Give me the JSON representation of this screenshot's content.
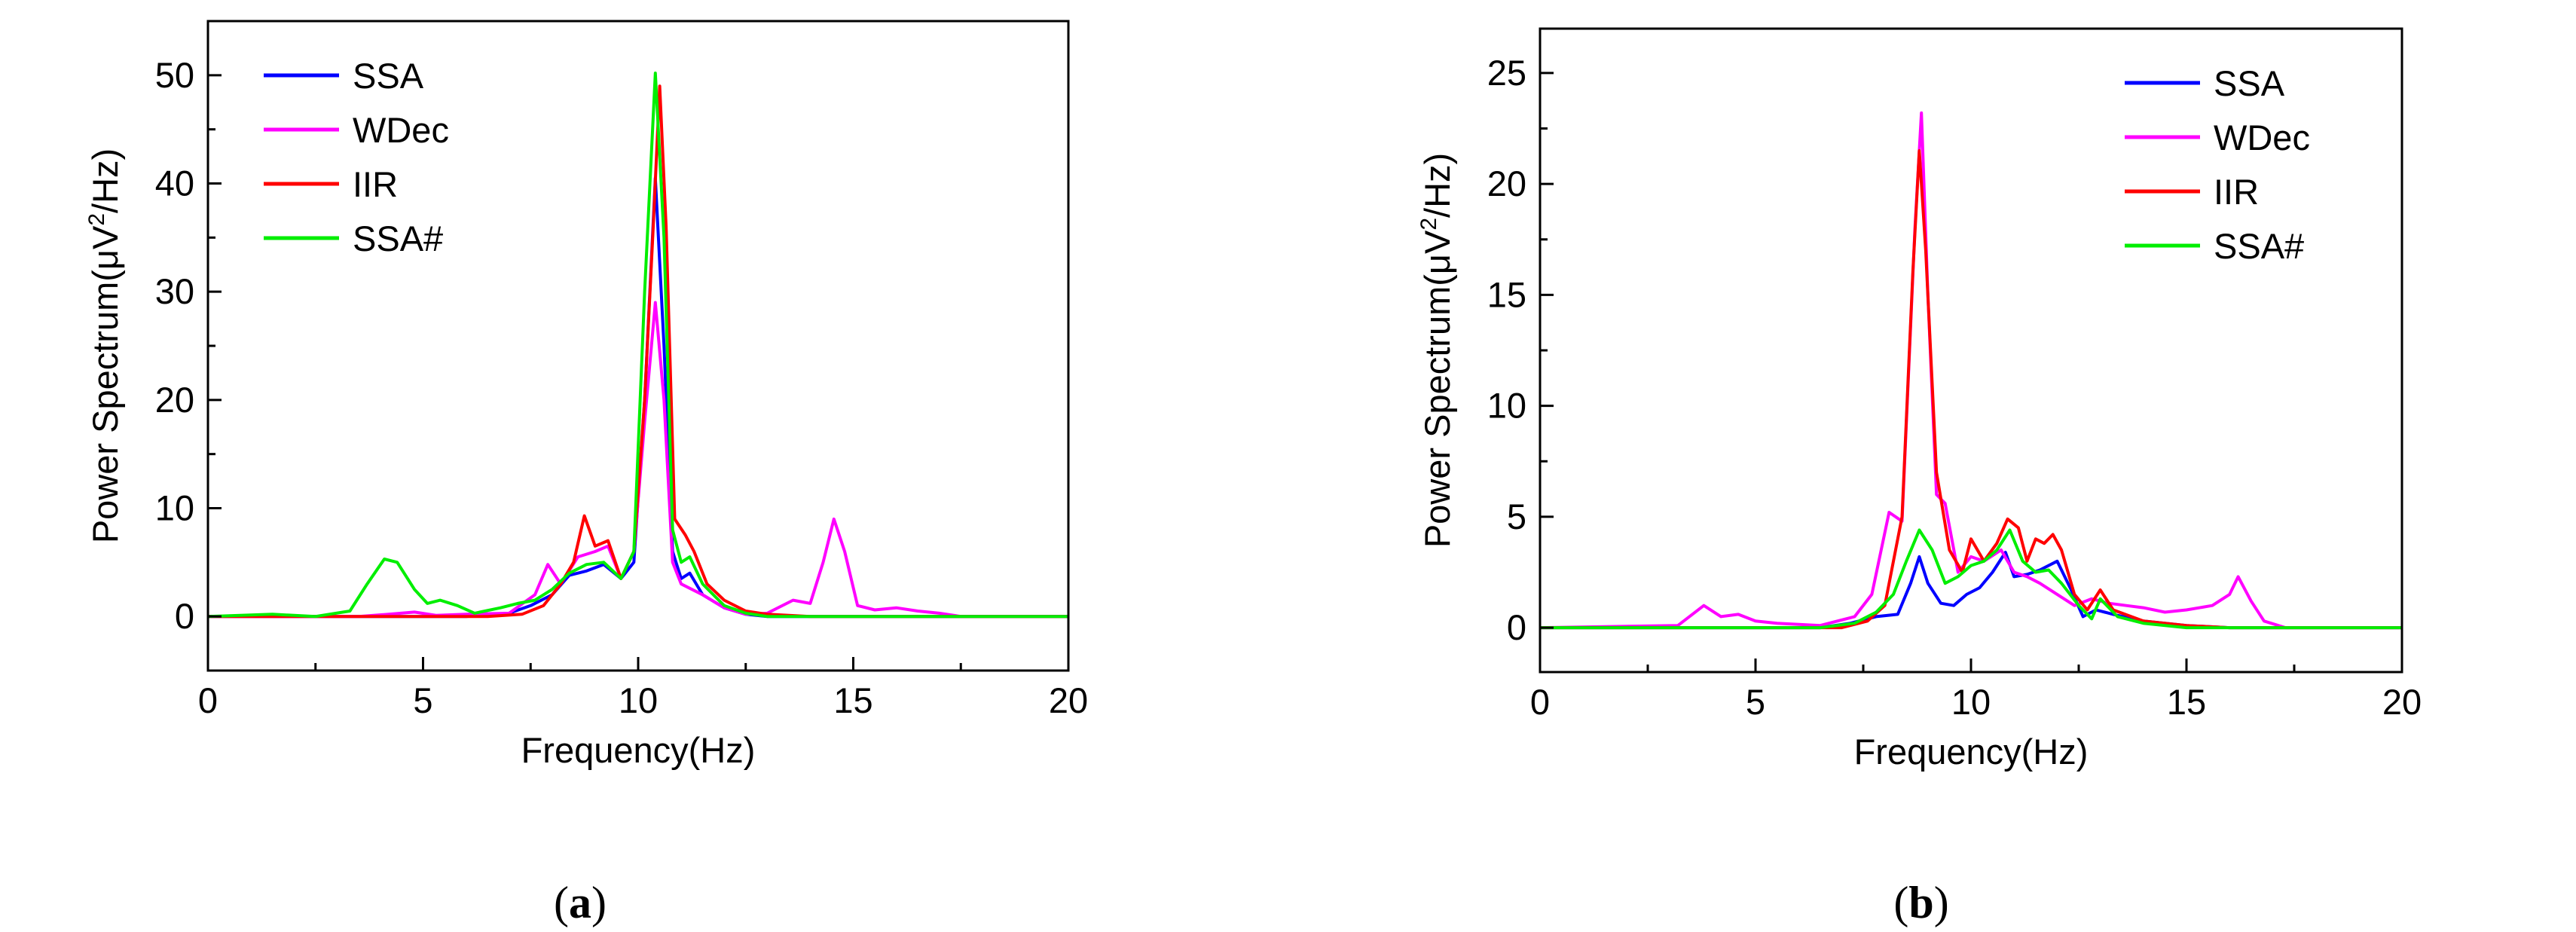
{
  "colors": {
    "SSA": "#0000ff",
    "WDec": "#ff00ff",
    "IIR": "#ff0000",
    "SSA#": "#00ee00"
  },
  "chart_data": [
    {
      "type": "line",
      "panel": "a",
      "caption_letter": "a",
      "xlabel": "Frequency(Hz)",
      "ylabel_parts": [
        "Power Spectrum(μV",
        "2",
        "/Hz)"
      ],
      "xlim": [
        0,
        20
      ],
      "ylim": [
        -5,
        55
      ],
      "xticks": [
        0,
        5,
        10,
        15,
        20
      ],
      "yticks": [
        0,
        10,
        20,
        30,
        40,
        50
      ],
      "legend_position": "top-left",
      "series": [
        {
          "name": "SSA",
          "points": [
            [
              0,
              0
            ],
            [
              6,
              0
            ],
            [
              7,
              0.3
            ],
            [
              7.5,
              1
            ],
            [
              8,
              2
            ],
            [
              8.4,
              3.8
            ],
            [
              8.8,
              4.2
            ],
            [
              9.2,
              4.8
            ],
            [
              9.6,
              3.5
            ],
            [
              9.9,
              5
            ],
            [
              10.15,
              20
            ],
            [
              10.4,
              40.5
            ],
            [
              10.6,
              25
            ],
            [
              10.8,
              6
            ],
            [
              11,
              3.5
            ],
            [
              11.2,
              4
            ],
            [
              11.5,
              2
            ],
            [
              12,
              0.8
            ],
            [
              12.5,
              0.2
            ],
            [
              13,
              0
            ],
            [
              20,
              0
            ]
          ]
        },
        {
          "name": "WDec",
          "points": [
            [
              0,
              0
            ],
            [
              3.5,
              0
            ],
            [
              4.2,
              0.2
            ],
            [
              4.8,
              0.4
            ],
            [
              5.3,
              0.1
            ],
            [
              6,
              0.2
            ],
            [
              7,
              0.3
            ],
            [
              7.6,
              2
            ],
            [
              7.9,
              4.8
            ],
            [
              8.2,
              3
            ],
            [
              8.6,
              5.5
            ],
            [
              9,
              6
            ],
            [
              9.3,
              6.5
            ],
            [
              9.6,
              3.5
            ],
            [
              9.9,
              6
            ],
            [
              10.15,
              18
            ],
            [
              10.4,
              29
            ],
            [
              10.6,
              20
            ],
            [
              10.8,
              5
            ],
            [
              11,
              3
            ],
            [
              11.5,
              2
            ],
            [
              12,
              0.8
            ],
            [
              12.5,
              0.2
            ],
            [
              13,
              0.3
            ],
            [
              13.6,
              1.5
            ],
            [
              14,
              1.2
            ],
            [
              14.3,
              5
            ],
            [
              14.55,
              9
            ],
            [
              14.8,
              6
            ],
            [
              15.1,
              1
            ],
            [
              15.5,
              0.6
            ],
            [
              16,
              0.8
            ],
            [
              16.5,
              0.5
            ],
            [
              17,
              0.3
            ],
            [
              17.5,
              0
            ],
            [
              20,
              0
            ]
          ]
        },
        {
          "name": "IIR",
          "points": [
            [
              0,
              0
            ],
            [
              6.5,
              0
            ],
            [
              7.3,
              0.2
            ],
            [
              7.8,
              1
            ],
            [
              8.2,
              3
            ],
            [
              8.5,
              5
            ],
            [
              8.75,
              9.3
            ],
            [
              9,
              6.5
            ],
            [
              9.3,
              7
            ],
            [
              9.6,
              3.5
            ],
            [
              9.9,
              6
            ],
            [
              10.15,
              20
            ],
            [
              10.35,
              36
            ],
            [
              10.5,
              49
            ],
            [
              10.65,
              36
            ],
            [
              10.85,
              9
            ],
            [
              11.1,
              7.5
            ],
            [
              11.3,
              6
            ],
            [
              11.6,
              3
            ],
            [
              12,
              1.5
            ],
            [
              12.5,
              0.5
            ],
            [
              13,
              0.2
            ],
            [
              14,
              0
            ],
            [
              20,
              0
            ]
          ]
        },
        {
          "name": "SSA#",
          "points": [
            [
              0,
              0
            ],
            [
              1.5,
              0.2
            ],
            [
              2.5,
              0
            ],
            [
              3.3,
              0.5
            ],
            [
              3.7,
              3
            ],
            [
              4.1,
              5.3
            ],
            [
              4.4,
              5
            ],
            [
              4.8,
              2.5
            ],
            [
              5.1,
              1.2
            ],
            [
              5.4,
              1.5
            ],
            [
              5.8,
              1
            ],
            [
              6.2,
              0.3
            ],
            [
              6.8,
              0.8
            ],
            [
              7.2,
              1.2
            ],
            [
              7.6,
              1.5
            ],
            [
              8,
              2.5
            ],
            [
              8.4,
              4
            ],
            [
              8.8,
              4.8
            ],
            [
              9.2,
              5
            ],
            [
              9.6,
              3.5
            ],
            [
              9.9,
              6
            ],
            [
              10.15,
              30
            ],
            [
              10.4,
              50.2
            ],
            [
              10.6,
              35
            ],
            [
              10.8,
              8
            ],
            [
              11,
              5
            ],
            [
              11.2,
              5.5
            ],
            [
              11.5,
              3
            ],
            [
              12,
              1
            ],
            [
              12.5,
              0.3
            ],
            [
              13,
              0
            ],
            [
              20,
              0
            ]
          ]
        }
      ]
    },
    {
      "type": "line",
      "panel": "b",
      "caption_letter": "b",
      "xlabel": "Frequency(Hz)",
      "ylabel_parts": [
        "Power Spectrum(μV",
        "2",
        "/Hz)"
      ],
      "xlim": [
        0,
        20
      ],
      "ylim": [
        -2,
        27
      ],
      "xticks": [
        0,
        5,
        10,
        15,
        20
      ],
      "yticks": [
        0,
        5,
        10,
        15,
        20,
        25
      ],
      "legend_position": "top-right",
      "series": [
        {
          "name": "SSA",
          "points": [
            [
              0,
              0
            ],
            [
              6.5,
              0
            ],
            [
              7.2,
              0.2
            ],
            [
              7.8,
              0.5
            ],
            [
              8.3,
              0.6
            ],
            [
              8.6,
              2
            ],
            [
              8.8,
              3.2
            ],
            [
              9,
              2
            ],
            [
              9.3,
              1.1
            ],
            [
              9.6,
              1
            ],
            [
              9.9,
              1.5
            ],
            [
              10.2,
              1.8
            ],
            [
              10.5,
              2.5
            ],
            [
              10.8,
              3.4
            ],
            [
              11,
              2.3
            ],
            [
              11.3,
              2.4
            ],
            [
              11.6,
              2.6
            ],
            [
              12,
              3
            ],
            [
              12.3,
              1.8
            ],
            [
              12.6,
              0.5
            ],
            [
              12.9,
              0.8
            ],
            [
              13.3,
              0.6
            ],
            [
              14,
              0.3
            ],
            [
              15,
              0.1
            ],
            [
              16,
              0
            ],
            [
              20,
              0
            ]
          ]
        },
        {
          "name": "WDec",
          "points": [
            [
              0,
              0
            ],
            [
              3.2,
              0.1
            ],
            [
              3.8,
              1
            ],
            [
              4.2,
              0.5
            ],
            [
              4.6,
              0.6
            ],
            [
              5,
              0.3
            ],
            [
              5.5,
              0.2
            ],
            [
              6.5,
              0.1
            ],
            [
              7.3,
              0.5
            ],
            [
              7.7,
              1.5
            ],
            [
              8.1,
              5.2
            ],
            [
              8.4,
              4.8
            ],
            [
              8.7,
              18
            ],
            [
              8.85,
              23.2
            ],
            [
              9,
              15
            ],
            [
              9.2,
              6
            ],
            [
              9.4,
              5.6
            ],
            [
              9.7,
              2.5
            ],
            [
              10,
              3.2
            ],
            [
              10.3,
              3
            ],
            [
              10.7,
              3.5
            ],
            [
              11,
              2.5
            ],
            [
              11.3,
              2.3
            ],
            [
              11.6,
              2
            ],
            [
              12,
              1.5
            ],
            [
              12.4,
              1
            ],
            [
              12.8,
              1.3
            ],
            [
              13.2,
              1.1
            ],
            [
              13.6,
              1
            ],
            [
              14,
              0.9
            ],
            [
              14.5,
              0.7
            ],
            [
              15,
              0.8
            ],
            [
              15.6,
              1
            ],
            [
              16,
              1.5
            ],
            [
              16.2,
              2.3
            ],
            [
              16.5,
              1.2
            ],
            [
              16.8,
              0.3
            ],
            [
              17.3,
              0
            ],
            [
              20,
              0
            ]
          ]
        },
        {
          "name": "IIR",
          "points": [
            [
              0,
              0
            ],
            [
              7,
              0
            ],
            [
              7.6,
              0.3
            ],
            [
              8,
              1
            ],
            [
              8.4,
              5
            ],
            [
              8.65,
              16
            ],
            [
              8.8,
              21.5
            ],
            [
              8.95,
              17
            ],
            [
              9.2,
              7
            ],
            [
              9.5,
              3.5
            ],
            [
              9.8,
              2.5
            ],
            [
              10,
              4
            ],
            [
              10.3,
              3
            ],
            [
              10.6,
              3.8
            ],
            [
              10.85,
              4.9
            ],
            [
              11.1,
              4.5
            ],
            [
              11.3,
              3
            ],
            [
              11.5,
              4
            ],
            [
              11.7,
              3.8
            ],
            [
              11.9,
              4.2
            ],
            [
              12.1,
              3.5
            ],
            [
              12.4,
              1.5
            ],
            [
              12.7,
              0.8
            ],
            [
              13,
              1.7
            ],
            [
              13.3,
              0.8
            ],
            [
              14,
              0.3
            ],
            [
              15,
              0.1
            ],
            [
              16,
              0
            ],
            [
              20,
              0
            ]
          ]
        },
        {
          "name": "SSA#",
          "points": [
            [
              0,
              0
            ],
            [
              6.5,
              0
            ],
            [
              7.3,
              0.2
            ],
            [
              7.8,
              0.7
            ],
            [
              8.2,
              1.5
            ],
            [
              8.5,
              3
            ],
            [
              8.8,
              4.4
            ],
            [
              9.1,
              3.5
            ],
            [
              9.4,
              2
            ],
            [
              9.7,
              2.3
            ],
            [
              10,
              2.8
            ],
            [
              10.3,
              3
            ],
            [
              10.6,
              3.5
            ],
            [
              10.9,
              4.4
            ],
            [
              11.2,
              3
            ],
            [
              11.5,
              2.5
            ],
            [
              11.8,
              2.6
            ],
            [
              12.1,
              2
            ],
            [
              12.5,
              1
            ],
            [
              12.8,
              0.4
            ],
            [
              13,
              1.3
            ],
            [
              13.4,
              0.5
            ],
            [
              14,
              0.2
            ],
            [
              15,
              0
            ],
            [
              20,
              0
            ]
          ]
        }
      ]
    }
  ]
}
